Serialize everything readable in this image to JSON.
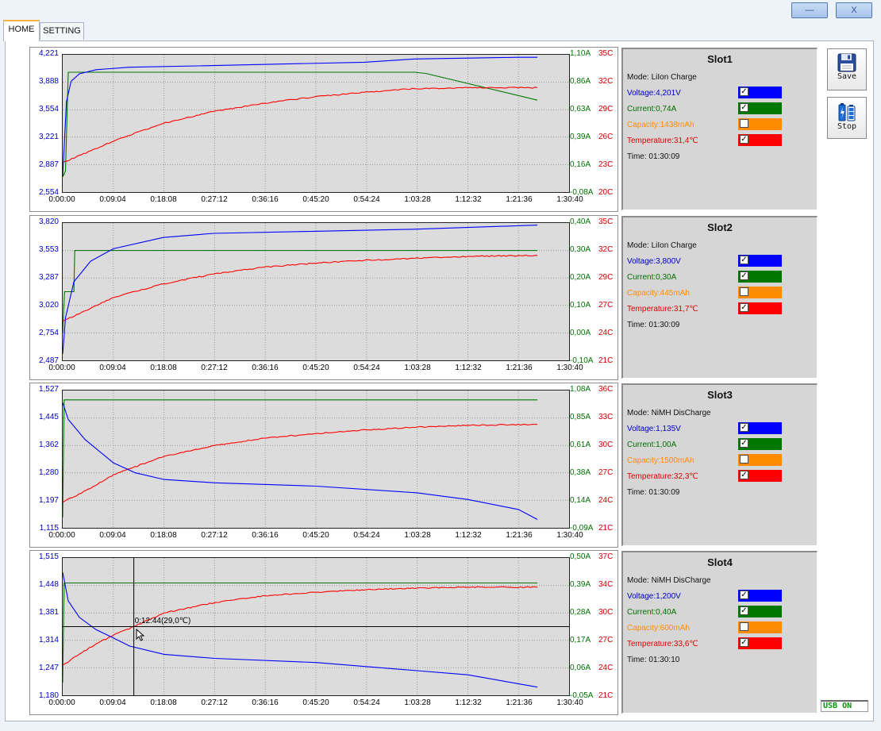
{
  "window": {
    "minimize_label": "—",
    "close_label": "X"
  },
  "tabs": [
    {
      "label": "HOME"
    },
    {
      "label": "SETTING"
    }
  ],
  "legend_labels": {
    "voltage": "Voltage",
    "current": "Current",
    "capacity": "Capacity",
    "temperature": "Temperature",
    "time": "Time"
  },
  "x_ticks": [
    "0:00:00",
    "0:09:04",
    "0:18:08",
    "0:27:12",
    "0:36:16",
    "0:45:20",
    "0:54:24",
    "1:03:28",
    "1:12:32",
    "1:21:36",
    "1:30:40"
  ],
  "colors": {
    "voltage": "#0000ff",
    "current": "#007800",
    "capacity": "#ff8c00",
    "temperature": "#ff0000",
    "plot_bg": "#dcdcdc"
  },
  "slots": [
    {
      "name": "Slot1",
      "mode": "Mode: LiIon  Charge",
      "voltage": "Voltage:4,201V",
      "current": "Current:0,74A",
      "capacity": "Capacity:1438mAh",
      "temperature": "Temperature:31,4℃",
      "time": "Time: 01:30:09",
      "checks": {
        "voltage": "✓",
        "current": "✓",
        "capacity": "",
        "temperature": "✓"
      },
      "y_left": [
        "4,221",
        "3,888",
        "3,554",
        "3,221",
        "2,887",
        "2,554"
      ],
      "y_current": [
        "1,10A",
        "0,86A",
        "0,63A",
        "0,39A",
        "0,16A",
        "-0,08A"
      ],
      "y_temp": [
        "35C",
        "32C",
        "29C",
        "26C",
        "23C",
        "20C"
      ],
      "chart_data": {
        "type": "line",
        "x_unit": "h:mm:ss",
        "voltage_range": [
          2.554,
          4.221
        ],
        "current_range": [
          -0.08,
          1.1
        ],
        "temperature_range": [
          20,
          35
        ],
        "voltage": {
          "x": [
            "0:00:00",
            "0:00:40",
            "0:01:30",
            "0:03:00",
            "0:06:00",
            "0:12:00",
            "0:27:00",
            "0:54:00",
            "1:03:00",
            "1:21:36",
            "1:25:00"
          ],
          "y": [
            2.75,
            3.65,
            3.9,
            3.99,
            4.04,
            4.07,
            4.09,
            4.13,
            4.17,
            4.19,
            4.19
          ]
        },
        "current": {
          "x": [
            "0:00:00",
            "0:00:30",
            "0:01:00",
            "0:40:00",
            "1:03:00",
            "1:05:00",
            "1:25:00"
          ],
          "y": [
            0.05,
            0.1,
            0.95,
            0.95,
            0.95,
            0.94,
            0.71
          ]
        },
        "temperature": {
          "x": [
            "0:00:00",
            "0:05:00",
            "0:10:00",
            "0:18:00",
            "0:27:00",
            "0:36:00",
            "0:45:00",
            "0:54:00",
            "1:03:00",
            "1:12:32",
            "1:25:00"
          ],
          "y": [
            23.2,
            24.5,
            25.8,
            27.5,
            28.8,
            29.7,
            30.4,
            30.9,
            31.3,
            31.4,
            31.4
          ]
        }
      }
    },
    {
      "name": "Slot2",
      "mode": "Mode: LiIon  Charge",
      "voltage": "Voltage:3,800V",
      "current": "Current:0,30A",
      "capacity": "Capacity:445mAh",
      "temperature": "Temperature:31,7℃",
      "time": "Time: 01:30:09",
      "checks": {
        "voltage": "✓",
        "current": "✓",
        "capacity": "",
        "temperature": "✓"
      },
      "y_left": [
        "3,820",
        "3,553",
        "3,287",
        "3,020",
        "2,754",
        "2,487"
      ],
      "y_current": [
        "0,40A",
        "0,30A",
        "0,20A",
        "0,10A",
        "0,00A",
        "-0,10A"
      ],
      "y_temp": [
        "35C",
        "32C",
        "29C",
        "27C",
        "24C",
        "21C"
      ],
      "chart_data": {
        "type": "line",
        "x_unit": "h:mm:ss",
        "voltage_range": [
          2.487,
          3.82
        ],
        "current_range": [
          -0.1,
          0.4
        ],
        "temperature_range": [
          21,
          35
        ],
        "voltage": {
          "x": [
            "0:00:00",
            "0:00:30",
            "0:02:00",
            "0:05:00",
            "0:09:04",
            "0:18:00",
            "0:27:00",
            "0:45:00",
            "1:03:00",
            "1:25:00"
          ],
          "y": [
            2.55,
            2.9,
            3.25,
            3.45,
            3.57,
            3.68,
            3.72,
            3.74,
            3.76,
            3.8
          ]
        },
        "current": {
          "x": [
            "0:00:00",
            "0:00:20",
            "0:02:00",
            "0:02:10",
            "0:40:00",
            "1:25:00"
          ],
          "y": [
            0.0,
            0.15,
            0.15,
            0.3,
            0.3,
            0.3
          ]
        },
        "temperature": {
          "x": [
            "0:00:00",
            "0:05:00",
            "0:09:04",
            "0:18:00",
            "0:27:00",
            "0:36:00",
            "0:45:00",
            "0:54:00",
            "1:03:00",
            "1:12:32",
            "1:25:00"
          ],
          "y": [
            25.0,
            26.3,
            27.4,
            28.8,
            29.8,
            30.5,
            30.9,
            31.2,
            31.4,
            31.6,
            31.7
          ]
        }
      }
    },
    {
      "name": "Slot3",
      "mode": "Mode: NiMH  DisCharge",
      "voltage": "Voltage:1,135V",
      "current": "Current:1,00A",
      "capacity": "Capacity:1500mAh",
      "temperature": "Temperature:32,3℃",
      "time": "Time: 01:30:09",
      "checks": {
        "voltage": "✓",
        "current": "✓",
        "capacity": "",
        "temperature": "✓"
      },
      "y_left": [
        "1,527",
        "1,445",
        "1,362",
        "1,280",
        "1,197",
        "1,115"
      ],
      "y_current": [
        "1,08A",
        "0,85A",
        "0,61A",
        "0,38A",
        "0,14A",
        "-0,09A"
      ],
      "y_temp": [
        "36C",
        "33C",
        "30C",
        "27C",
        "24C",
        "21C"
      ],
      "chart_data": {
        "type": "line",
        "x_unit": "h:mm:ss",
        "voltage_range": [
          1.115,
          1.527
        ],
        "current_range": [
          -0.09,
          1.08
        ],
        "temperature_range": [
          21,
          36
        ],
        "voltage": {
          "x": [
            "0:00:00",
            "0:01:00",
            "0:04:00",
            "0:09:04",
            "0:13:00",
            "0:18:08",
            "0:27:12",
            "0:45:20",
            "1:03:28",
            "1:12:32",
            "1:21:36",
            "1:25:00"
          ],
          "y": [
            1.49,
            1.44,
            1.38,
            1.31,
            1.28,
            1.26,
            1.25,
            1.24,
            1.22,
            1.2,
            1.17,
            1.14
          ]
        },
        "current": {
          "x": [
            "0:00:00",
            "0:00:15",
            "1:25:00"
          ],
          "y": [
            0.0,
            1.0,
            1.0
          ]
        },
        "temperature": {
          "x": [
            "0:00:00",
            "0:05:00",
            "0:09:04",
            "0:18:08",
            "0:27:12",
            "0:36:16",
            "0:45:20",
            "0:54:24",
            "1:03:28",
            "1:12:32",
            "1:25:00"
          ],
          "y": [
            23.8,
            25.3,
            26.8,
            28.8,
            30.0,
            30.8,
            31.3,
            31.7,
            32.0,
            32.2,
            32.3
          ]
        }
      }
    },
    {
      "name": "Slot4",
      "mode": "Mode: NiMH  DisCharge",
      "voltage": "Voltage:1,200V",
      "current": "Current:0,40A",
      "capacity": "Capacity:600mAh",
      "temperature": "Temperature:33,6℃",
      "time": "Time: 01:30:10",
      "checks": {
        "voltage": "✓",
        "current": "✓",
        "capacity": "",
        "temperature": "✓"
      },
      "y_left": [
        "1,515",
        "1,448",
        "1,381",
        "1,314",
        "1,247",
        "1,180"
      ],
      "y_current": [
        "0,50A",
        "0,39A",
        "0,28A",
        "0,17A",
        "0,06A",
        "-0,05A"
      ],
      "y_temp": [
        "37C",
        "34C",
        "30C",
        "27C",
        "24C",
        "21C"
      ],
      "cursor_label": "0:12:44(29,0℃)",
      "cursor": {
        "time": "0:12:44",
        "temperature": 29.0
      },
      "chart_data": {
        "type": "line",
        "x_unit": "h:mm:ss",
        "voltage_range": [
          1.18,
          1.515
        ],
        "current_range": [
          -0.05,
          0.5
        ],
        "temperature_range": [
          21,
          37
        ],
        "voltage": {
          "x": [
            "0:00:00",
            "0:01:00",
            "0:03:00",
            "0:06:00",
            "0:09:04",
            "0:12:00",
            "0:18:08",
            "0:27:12",
            "0:45:20",
            "1:03:28",
            "1:12:32",
            "1:25:00"
          ],
          "y": [
            1.48,
            1.41,
            1.37,
            1.34,
            1.32,
            1.3,
            1.28,
            1.27,
            1.26,
            1.24,
            1.23,
            1.2
          ]
        },
        "current": {
          "x": [
            "0:00:00",
            "0:00:15",
            "1:25:00"
          ],
          "y": [
            0.0,
            0.4,
            0.4
          ]
        },
        "temperature": {
          "x": [
            "0:00:00",
            "0:03:00",
            "0:06:00",
            "0:09:04",
            "0:12:44",
            "0:18:08",
            "0:27:12",
            "0:36:16",
            "0:45:20",
            "0:54:24",
            "1:03:28",
            "1:12:32",
            "1:25:00"
          ],
          "y": [
            24.5,
            25.8,
            27.0,
            28.0,
            29.0,
            30.6,
            31.8,
            32.6,
            33.0,
            33.3,
            33.5,
            33.6,
            33.6
          ]
        }
      }
    }
  ],
  "sidebar": {
    "save_label": "Save",
    "stop_label": "Stop"
  },
  "status": {
    "usb": "USB ON"
  }
}
